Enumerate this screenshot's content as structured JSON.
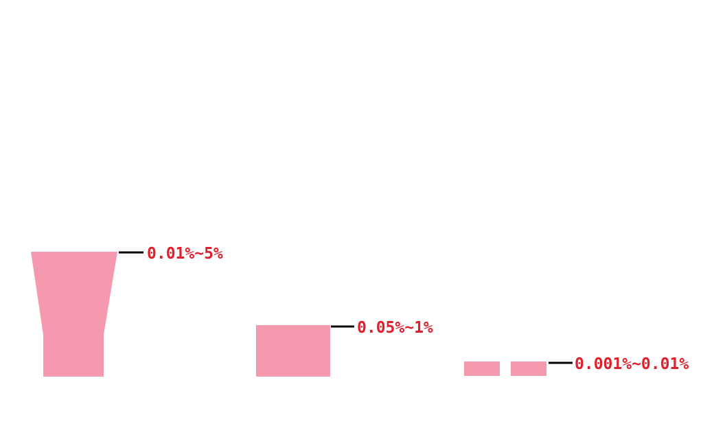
{
  "colors": {
    "shape_fill": "#f59aae",
    "leader_line": "#000000",
    "label_text": "#e0202c",
    "background": "#ffffff"
  },
  "items": [
    {
      "id": "tapered-vessel",
      "range_label": "0.01%~5%"
    },
    {
      "id": "rectangular-block",
      "range_label": "0.05%~1%"
    },
    {
      "id": "twin-thin-slabs",
      "range_label": "0.001%~0.01%"
    }
  ]
}
